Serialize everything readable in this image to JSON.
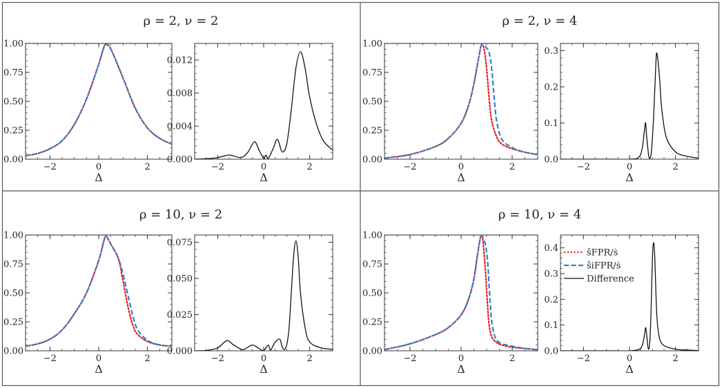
{
  "chart_data": [
    {
      "type": "line",
      "title": "ρ = 2, ν = 2",
      "x_range": [
        -3,
        3
      ],
      "subplots": [
        {
          "xlabel": "Δ",
          "ylim": [
            0,
            1.0
          ],
          "xticks": [
            "−2",
            "0",
            "2"
          ],
          "yticks": [
            "0.00",
            "0.25",
            "0.50",
            "0.75",
            "1.00"
          ],
          "reference_line": 1.0,
          "series": [
            {
              "name": "FPR",
              "color": "#e8211e",
              "style": "dotted",
              "x": [
                -3,
                -2.5,
                -2,
                -1.5,
                -1,
                -0.5,
                0,
                0.2,
                0.3,
                0.5,
                1,
                1.5,
                2,
                2.5,
                3
              ],
              "y": [
                0.03,
                0.05,
                0.09,
                0.16,
                0.3,
                0.52,
                0.82,
                0.96,
                0.99,
                0.95,
                0.7,
                0.44,
                0.27,
                0.18,
                0.13
              ]
            },
            {
              "name": "iFPR",
              "color": "#2b7fcf",
              "style": "dashed",
              "x": [
                -3,
                -2.5,
                -2,
                -1.5,
                -1,
                -0.5,
                0,
                0.2,
                0.3,
                0.5,
                1,
                1.5,
                2,
                2.5,
                3
              ],
              "y": [
                0.03,
                0.05,
                0.09,
                0.16,
                0.3,
                0.52,
                0.82,
                0.96,
                0.99,
                0.95,
                0.7,
                0.44,
                0.27,
                0.18,
                0.13
              ]
            }
          ]
        },
        {
          "xlabel": "Δ",
          "ylim": [
            0,
            0.014
          ],
          "xticks": [
            "−2",
            "0",
            "2"
          ],
          "yticks": [
            "0.000",
            "0.004",
            "0.008",
            "0.012"
          ],
          "series": [
            {
              "name": "Difference",
              "color": "#111111",
              "style": "solid",
              "x": [
                -3,
                -2.5,
                -2,
                -1.5,
                -1,
                -0.7,
                -0.4,
                -0.2,
                0,
                0.1,
                0.2,
                0.4,
                0.6,
                0.8,
                1,
                1.2,
                1.4,
                1.6,
                1.8,
                2,
                2.3,
                2.6,
                3
              ],
              "y": [
                0,
                5e-05,
                0.0002,
                0.0005,
                0.0002,
                0.0008,
                0.0021,
                0.0011,
                0.0001,
                0.0005,
                0.0001,
                0.0012,
                0.0024,
                0.0009,
                0.0018,
                0.006,
                0.011,
                0.013,
                0.011,
                0.0075,
                0.0042,
                0.0022,
                0.0011
              ]
            }
          ]
        }
      ]
    },
    {
      "type": "line",
      "title": "ρ = 2, ν = 4",
      "x_range": [
        -3,
        3
      ],
      "subplots": [
        {
          "xlabel": "Δ",
          "ylim": [
            0,
            1.0
          ],
          "xticks": [
            "−2",
            "0",
            "2"
          ],
          "yticks": [
            "0.00",
            "0.25",
            "0.50",
            "0.75",
            "1.00"
          ],
          "reference_line": 1.0,
          "series": [
            {
              "name": "FPR",
              "color": "#e8211e",
              "style": "dotted",
              "x": [
                -3,
                -2,
                -1,
                -0.5,
                0,
                0.3,
                0.5,
                0.7,
                0.8,
                0.9,
                1.0,
                1.1,
                1.2,
                1.4,
                1.6,
                2,
                2.5,
                3
              ],
              "y": [
                0.01,
                0.04,
                0.11,
                0.18,
                0.31,
                0.47,
                0.65,
                0.89,
                0.99,
                0.95,
                0.78,
                0.52,
                0.33,
                0.19,
                0.13,
                0.09,
                0.06,
                0.04
              ]
            },
            {
              "name": "iFPR",
              "color": "#2b7fcf",
              "style": "dashed",
              "x": [
                -3,
                -2,
                -1,
                -0.5,
                0,
                0.3,
                0.5,
                0.7,
                0.8,
                0.9,
                1.0,
                1.1,
                1.2,
                1.3,
                1.4,
                1.6,
                2,
                2.5,
                3
              ],
              "y": [
                0.01,
                0.04,
                0.11,
                0.18,
                0.31,
                0.47,
                0.65,
                0.89,
                0.99,
                0.98,
                0.96,
                0.92,
                0.78,
                0.52,
                0.32,
                0.17,
                0.1,
                0.06,
                0.04
              ]
            }
          ]
        },
        {
          "xlabel": "Δ",
          "ylim": [
            0,
            0.32
          ],
          "xticks": [
            "−2",
            "0",
            "2"
          ],
          "yticks": [
            "0.0",
            "0.1",
            "0.2",
            "0.3"
          ],
          "series": [
            {
              "name": "Difference",
              "color": "#111111",
              "style": "solid",
              "x": [
                -3,
                -1,
                0,
                0.4,
                0.55,
                0.65,
                0.7,
                0.75,
                0.85,
                0.95,
                1.05,
                1.15,
                1.2,
                1.3,
                1.4,
                1.6,
                2,
                2.5,
                3
              ],
              "y": [
                0,
                0,
                0,
                0.005,
                0.03,
                0.08,
                0.1,
                0.06,
                0.005,
                0.02,
                0.12,
                0.27,
                0.29,
                0.23,
                0.14,
                0.06,
                0.02,
                0.008,
                0.003
              ]
            }
          ]
        }
      ]
    },
    {
      "type": "line",
      "title": "ρ = 10, ν = 2",
      "x_range": [
        -3,
        3
      ],
      "subplots": [
        {
          "xlabel": "Δ",
          "ylim": [
            0,
            1.0
          ],
          "xticks": [
            "−2",
            "0",
            "2"
          ],
          "yticks": [
            "0.00",
            "0.25",
            "0.50",
            "0.75",
            "1.00"
          ],
          "reference_line": 1.0,
          "series": [
            {
              "name": "FPR",
              "color": "#e8211e",
              "style": "dotted",
              "x": [
                -3,
                -2.5,
                -2,
                -1.5,
                -1,
                -0.5,
                0,
                0.2,
                0.3,
                0.5,
                0.8,
                1.0,
                1.2,
                1.4,
                1.6,
                2,
                2.5,
                3
              ],
              "y": [
                0.04,
                0.06,
                0.1,
                0.18,
                0.32,
                0.5,
                0.78,
                0.94,
                0.99,
                0.92,
                0.8,
                0.6,
                0.38,
                0.22,
                0.14,
                0.08,
                0.05,
                0.04
              ]
            },
            {
              "name": "iFPR",
              "color": "#2b7fcf",
              "style": "dashed",
              "x": [
                -3,
                -2.5,
                -2,
                -1.5,
                -1,
                -0.5,
                0,
                0.2,
                0.3,
                0.5,
                0.8,
                1.0,
                1.2,
                1.4,
                1.6,
                2,
                2.5,
                3
              ],
              "y": [
                0.04,
                0.06,
                0.1,
                0.18,
                0.32,
                0.5,
                0.78,
                0.94,
                0.99,
                0.92,
                0.8,
                0.66,
                0.48,
                0.3,
                0.18,
                0.09,
                0.05,
                0.04
              ]
            }
          ]
        },
        {
          "xlabel": "Δ",
          "ylim": [
            0,
            0.08
          ],
          "xticks": [
            "−2",
            "0",
            "2"
          ],
          "yticks": [
            "0.000",
            "0.025",
            "0.050",
            "0.075"
          ],
          "series": [
            {
              "name": "Difference",
              "color": "#111111",
              "style": "solid",
              "x": [
                -3,
                -2.5,
                -2,
                -1.6,
                -1.3,
                -0.9,
                -0.5,
                -0.2,
                0,
                0.2,
                0.3,
                0.5,
                0.7,
                0.8,
                0.9,
                1.0,
                1.1,
                1.2,
                1.3,
                1.4,
                1.5,
                1.6,
                1.8,
                2,
                2.5,
                3
              ],
              "y": [
                0,
                0.0002,
                0.002,
                0.007,
                0.004,
                0.0008,
                0.004,
                0.0015,
                0.0002,
                0.004,
                0.0005,
                0.006,
                0.008,
                0.003,
                0.0008,
                0.004,
                0.015,
                0.04,
                0.065,
                0.076,
                0.065,
                0.04,
                0.016,
                0.006,
                0.002,
                0.001
              ]
            }
          ]
        }
      ]
    },
    {
      "type": "line",
      "title": "ρ = 10, ν = 4",
      "x_range": [
        -3,
        3
      ],
      "subplots": [
        {
          "xlabel": "Δ",
          "ylim": [
            0,
            1.0
          ],
          "xticks": [
            "−2",
            "0",
            "2"
          ],
          "yticks": [
            "0.00",
            "0.25",
            "0.50",
            "0.75",
            "1.00"
          ],
          "reference_line": 1.0,
          "series": [
            {
              "name": "FPR",
              "color": "#e8211e",
              "style": "dotted",
              "x": [
                -3,
                -2,
                -1,
                -0.5,
                0,
                0.3,
                0.5,
                0.65,
                0.75,
                0.8,
                0.85,
                0.95,
                1.0,
                1.05,
                1.1,
                1.2,
                1.4,
                1.6,
                2,
                2.5,
                3
              ],
              "y": [
                0.01,
                0.06,
                0.14,
                0.2,
                0.31,
                0.45,
                0.62,
                0.84,
                0.97,
                0.99,
                0.96,
                0.7,
                0.52,
                0.35,
                0.22,
                0.12,
                0.07,
                0.05,
                0.03,
                0.02,
                0.01
              ]
            },
            {
              "name": "iFPR",
              "color": "#2b7fcf",
              "style": "dashed",
              "x": [
                -3,
                -2,
                -1,
                -0.5,
                0,
                0.3,
                0.5,
                0.65,
                0.75,
                0.8,
                0.85,
                0.95,
                1.0,
                1.05,
                1.1,
                1.15,
                1.2,
                1.3,
                1.4,
                1.6,
                2,
                2.5,
                3
              ],
              "y": [
                0.01,
                0.06,
                0.14,
                0.2,
                0.31,
                0.45,
                0.62,
                0.84,
                0.97,
                0.99,
                0.98,
                0.92,
                0.85,
                0.74,
                0.55,
                0.38,
                0.25,
                0.14,
                0.09,
                0.06,
                0.04,
                0.02,
                0.01
              ]
            }
          ]
        },
        {
          "xlabel": "Δ",
          "ylim": [
            0,
            0.45
          ],
          "xticks": [
            "−2",
            "0",
            "2"
          ],
          "yticks": [
            "0.0",
            "0.1",
            "0.2",
            "0.3",
            "0.4"
          ],
          "series": [
            {
              "name": "Difference",
              "color": "#111111",
              "style": "solid",
              "x": [
                -3,
                -1,
                0,
                0.4,
                0.55,
                0.65,
                0.7,
                0.75,
                0.8,
                0.85,
                0.9,
                0.95,
                1.0,
                1.05,
                1.1,
                1.15,
                1.2,
                1.3,
                1.5,
                2,
                2.5,
                3
              ],
              "y": [
                0,
                0,
                0,
                0.005,
                0.02,
                0.06,
                0.09,
                0.06,
                0.015,
                0.01,
                0.06,
                0.2,
                0.37,
                0.42,
                0.36,
                0.22,
                0.12,
                0.05,
                0.02,
                0.006,
                0.003,
                0.001
              ]
            }
          ]
        }
      ]
    }
  ],
  "legend": {
    "entries": [
      {
        "label": "ŝFPR/ṡ",
        "color": "#e8211e",
        "style": "dotted"
      },
      {
        "label": "ŝiFPR/ṡ",
        "color": "#2b7fcf",
        "style": "dashed"
      },
      {
        "label": "Difference",
        "color": "#111111",
        "style": "solid"
      }
    ]
  }
}
